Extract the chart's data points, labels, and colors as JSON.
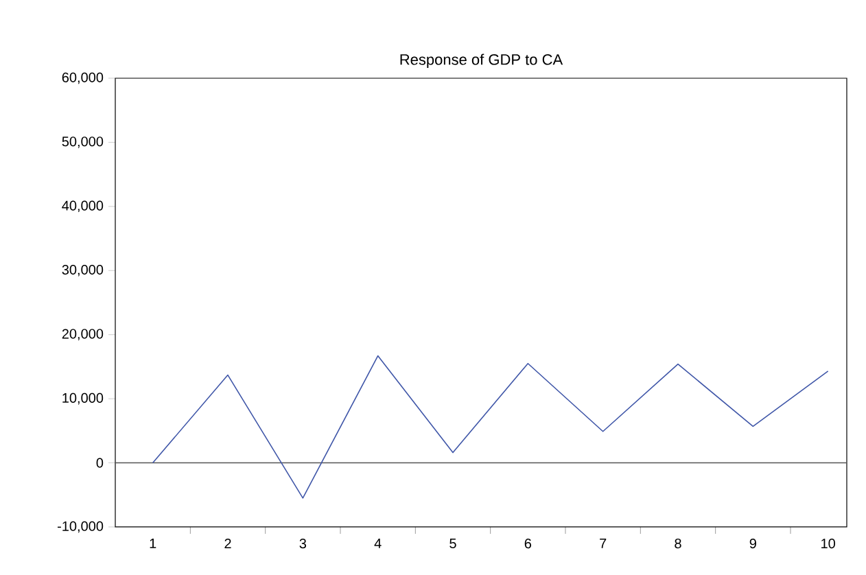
{
  "chart_data": {
    "type": "line",
    "title": "Response of GDP to CA",
    "categories": [
      "1",
      "2",
      "3",
      "4",
      "5",
      "6",
      "7",
      "8",
      "9",
      "10"
    ],
    "series": [
      {
        "color": "#3f56a8",
        "values": [
          0,
          13700,
          -5500,
          16700,
          1600,
          15500,
          4900,
          15400,
          5700,
          14300
        ]
      }
    ],
    "ylim": [
      -10000,
      60000
    ],
    "yticks": [
      {
        "value": -10000,
        "label": "-10,000"
      },
      {
        "value": 0,
        "label": "0"
      },
      {
        "value": 10000,
        "label": "10,000"
      },
      {
        "value": 20000,
        "label": "20,000"
      },
      {
        "value": 30000,
        "label": "30,000"
      },
      {
        "value": 40000,
        "label": "40,000"
      },
      {
        "value": 50000,
        "label": "50,000"
      },
      {
        "value": 60000,
        "label": "60,000"
      }
    ],
    "ref_lines": [
      {
        "axis": "y",
        "value": 0,
        "color": "#555555"
      }
    ],
    "grid": false,
    "marker": "none",
    "line_style": "solid"
  }
}
